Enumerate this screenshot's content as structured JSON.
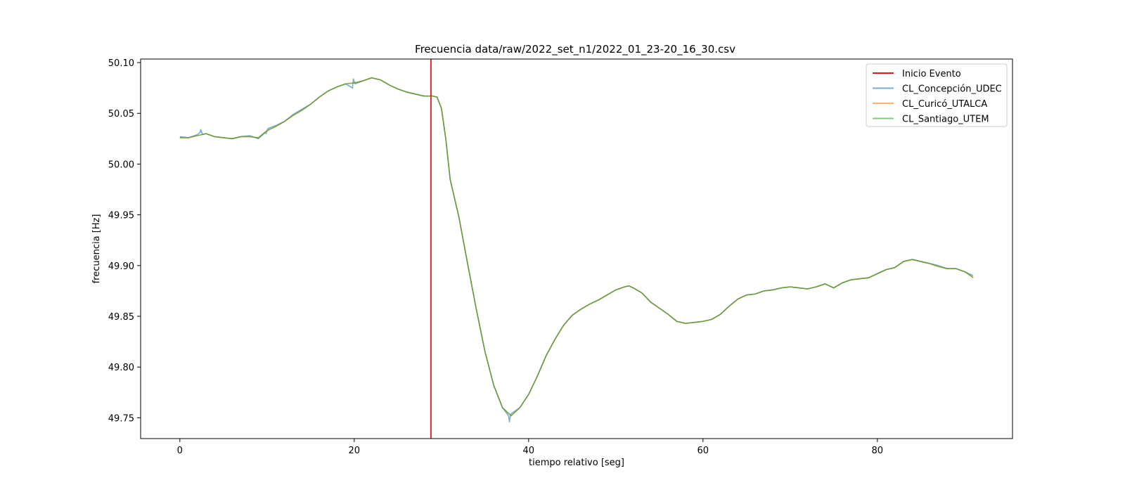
{
  "chart_data": {
    "type": "line",
    "title": "Frecuencia data/raw/2022_set_n1/2022_01_23-20_16_30.csv",
    "xlabel": "tiempo relativo [seg]",
    "ylabel": "frecuencia [Hz]",
    "xlim": [
      -4.5,
      95.5
    ],
    "ylim": [
      49.7295,
      50.1035
    ],
    "xticks": [
      0,
      20,
      40,
      60,
      80
    ],
    "xtick_labels": [
      "0",
      "20",
      "40",
      "60",
      "80"
    ],
    "yticks": [
      49.75,
      49.8,
      49.85,
      49.9,
      49.95,
      50.0,
      50.05,
      50.1
    ],
    "ytick_labels": [
      "49.75",
      "49.80",
      "49.85",
      "49.90",
      "49.95",
      "50.00",
      "50.05",
      "50.10"
    ],
    "grid": false,
    "legend_position": "top-right",
    "event": {
      "label": "Inicio Evento",
      "x": 28.8,
      "color": "#e41a1c"
    },
    "series_colors": [
      "#1f77b4",
      "#ff7f0e",
      "#2ca02c"
    ],
    "series": [
      {
        "name": "CL_Concepción_UDEC",
        "x": [
          0,
          1,
          2,
          2.3,
          2.4,
          2.6,
          3,
          4,
          5,
          6,
          7,
          8,
          9,
          9.8,
          9.9,
          10.1,
          11,
          12,
          13,
          14,
          15,
          16,
          17,
          18,
          19,
          19.8,
          19.9,
          20.1,
          21,
          22,
          23,
          24,
          25,
          26,
          27,
          28,
          29,
          29.5,
          30,
          30.5,
          31,
          32,
          33,
          34,
          35,
          36,
          37,
          37.7,
          37.8,
          37.9,
          38,
          39,
          40,
          41,
          42,
          43,
          44,
          45,
          46,
          47,
          48,
          49,
          50,
          51,
          51.5,
          52,
          53,
          54,
          55,
          56,
          57,
          58,
          59,
          60,
          61,
          62,
          63,
          64,
          65,
          66,
          67,
          68,
          69,
          70,
          71,
          72,
          73,
          74,
          75,
          76,
          77,
          78,
          79,
          80,
          81,
          82,
          83,
          84,
          85,
          86,
          87,
          88,
          89,
          90,
          91
        ],
        "y": [
          50.027,
          50.026,
          50.029,
          50.031,
          50.034,
          50.029,
          50.03,
          50.027,
          50.026,
          50.025,
          50.027,
          50.028,
          50.025,
          50.031,
          50.03,
          50.035,
          50.038,
          50.042,
          50.049,
          50.054,
          50.059,
          50.066,
          50.072,
          50.076,
          50.079,
          50.075,
          50.084,
          50.079,
          50.082,
          50.085,
          50.083,
          50.078,
          50.074,
          50.071,
          50.069,
          50.067,
          50.067,
          50.066,
          50.055,
          50.025,
          49.985,
          49.948,
          49.902,
          49.857,
          49.815,
          49.782,
          49.76,
          49.752,
          49.746,
          49.752,
          49.754,
          49.76,
          49.773,
          49.791,
          49.811,
          49.827,
          49.841,
          49.851,
          49.857,
          49.862,
          49.866,
          49.871,
          49.876,
          49.879,
          49.88,
          49.878,
          49.873,
          49.864,
          49.858,
          49.852,
          49.845,
          49.843,
          49.844,
          49.845,
          49.847,
          49.852,
          49.86,
          49.867,
          49.871,
          49.872,
          49.875,
          49.876,
          49.878,
          49.879,
          49.878,
          49.877,
          49.879,
          49.882,
          49.878,
          49.883,
          49.886,
          49.887,
          49.888,
          49.892,
          49.896,
          49.898,
          49.904,
          49.906,
          49.904,
          49.902,
          49.9,
          49.897,
          49.897,
          49.894,
          49.89
        ]
      },
      {
        "name": "CL_Curicó_UTALCA",
        "x": [
          0,
          1,
          2,
          3,
          4,
          5,
          6,
          7,
          8,
          9,
          10,
          11,
          12,
          13,
          14,
          15,
          16,
          17,
          18,
          19,
          20,
          21,
          22,
          23,
          24,
          25,
          26,
          27,
          28,
          29,
          29.5,
          30,
          30.5,
          31,
          32,
          33,
          34,
          35,
          36,
          37,
          38,
          39,
          40,
          41,
          42,
          43,
          44,
          45,
          46,
          47,
          48,
          49,
          50,
          51,
          51.5,
          52,
          53,
          54,
          55,
          56,
          57,
          58,
          59,
          60,
          61,
          62,
          63,
          64,
          65,
          66,
          67,
          68,
          69,
          70,
          71,
          72,
          73,
          74,
          75,
          76,
          77,
          78,
          79,
          80,
          81,
          82,
          83,
          84,
          85,
          86,
          87,
          88,
          89,
          90,
          91
        ],
        "y": [
          50.026,
          50.026,
          50.028,
          50.03,
          50.027,
          50.026,
          50.025,
          50.027,
          50.027,
          50.026,
          50.033,
          50.037,
          50.042,
          50.048,
          50.053,
          50.059,
          50.066,
          50.072,
          50.076,
          50.079,
          50.08,
          50.082,
          50.085,
          50.083,
          50.078,
          50.074,
          50.071,
          50.069,
          50.067,
          50.067,
          50.066,
          50.055,
          50.025,
          49.985,
          49.948,
          49.902,
          49.857,
          49.815,
          49.782,
          49.76,
          49.752,
          49.76,
          49.773,
          49.791,
          49.811,
          49.827,
          49.841,
          49.851,
          49.857,
          49.862,
          49.866,
          49.871,
          49.876,
          49.879,
          49.88,
          49.878,
          49.873,
          49.864,
          49.858,
          49.852,
          49.845,
          49.843,
          49.844,
          49.845,
          49.847,
          49.852,
          49.86,
          49.867,
          49.871,
          49.872,
          49.875,
          49.876,
          49.878,
          49.879,
          49.878,
          49.877,
          49.879,
          49.882,
          49.878,
          49.883,
          49.886,
          49.887,
          49.888,
          49.892,
          49.896,
          49.898,
          49.904,
          49.906,
          49.904,
          49.902,
          49.899,
          49.897,
          49.897,
          49.894,
          49.888
        ]
      },
      {
        "name": "CL_Santiago_UTEM",
        "x": [
          0,
          1,
          2,
          3,
          4,
          5,
          6,
          7,
          8,
          9,
          10,
          11,
          12,
          13,
          14,
          15,
          16,
          17,
          18,
          19,
          20,
          21,
          22,
          23,
          24,
          25,
          26,
          27,
          28,
          29,
          29.5,
          30,
          30.5,
          31,
          32,
          33,
          34,
          35,
          36,
          37,
          38,
          39,
          40,
          41,
          42,
          43,
          44,
          45,
          46,
          47,
          48,
          49,
          50,
          51,
          51.5,
          52,
          53,
          54,
          55,
          56,
          57,
          58,
          59,
          60,
          61,
          62,
          63,
          64,
          65,
          66,
          67,
          68,
          69,
          70,
          71,
          72,
          73,
          74,
          75,
          76,
          77,
          78,
          79,
          80,
          81,
          82,
          83,
          84,
          85,
          86,
          87,
          88,
          89,
          90,
          91
        ],
        "y": [
          50.026,
          50.026,
          50.028,
          50.03,
          50.027,
          50.026,
          50.025,
          50.027,
          50.027,
          50.026,
          50.033,
          50.037,
          50.042,
          50.048,
          50.053,
          50.059,
          50.066,
          50.072,
          50.076,
          50.079,
          50.08,
          50.082,
          50.085,
          50.083,
          50.078,
          50.074,
          50.071,
          50.069,
          50.067,
          50.067,
          50.066,
          50.055,
          50.025,
          49.985,
          49.948,
          49.902,
          49.857,
          49.815,
          49.782,
          49.76,
          49.752,
          49.76,
          49.773,
          49.791,
          49.811,
          49.827,
          49.841,
          49.851,
          49.857,
          49.862,
          49.866,
          49.871,
          49.876,
          49.879,
          49.88,
          49.878,
          49.873,
          49.864,
          49.858,
          49.852,
          49.845,
          49.843,
          49.844,
          49.845,
          49.847,
          49.852,
          49.86,
          49.867,
          49.871,
          49.872,
          49.875,
          49.876,
          49.878,
          49.879,
          49.878,
          49.877,
          49.879,
          49.882,
          49.878,
          49.883,
          49.886,
          49.887,
          49.888,
          49.892,
          49.896,
          49.898,
          49.904,
          49.906,
          49.904,
          49.902,
          49.899,
          49.897,
          49.897,
          49.894,
          49.888
        ]
      }
    ]
  }
}
